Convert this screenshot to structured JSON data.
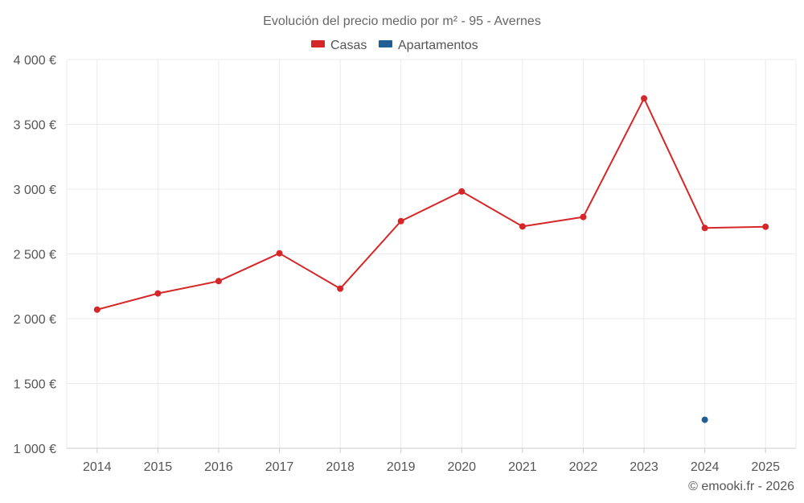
{
  "chart_data": {
    "type": "line",
    "title": "Evolución del precio medio por m² - 95 - Avernes",
    "categories": [
      "2014",
      "2015",
      "2016",
      "2017",
      "2018",
      "2019",
      "2020",
      "2021",
      "2022",
      "2023",
      "2024",
      "2025"
    ],
    "series": [
      {
        "name": "Casas",
        "color": "#d62728",
        "values": [
          2070,
          2195,
          2290,
          2505,
          2232,
          2753,
          2982,
          2712,
          2785,
          3700,
          2700,
          2710
        ]
      },
      {
        "name": "Apartamentos",
        "color": "#1f5f96",
        "values": [
          null,
          null,
          null,
          null,
          null,
          null,
          null,
          null,
          null,
          null,
          1220,
          null
        ]
      }
    ],
    "ylim": [
      1000,
      4000
    ],
    "yticks": [
      1000,
      1500,
      2000,
      2500,
      3000,
      3500,
      4000
    ],
    "ytick_labels": [
      "1 000 €",
      "1 500 €",
      "2 000 €",
      "2 500 €",
      "3 000 €",
      "3 500 €",
      "4 000 €"
    ],
    "xlabel": "",
    "ylabel": "",
    "grid": true,
    "legend_position": "top-center"
  },
  "credit": "© emooki.fr - 2026"
}
